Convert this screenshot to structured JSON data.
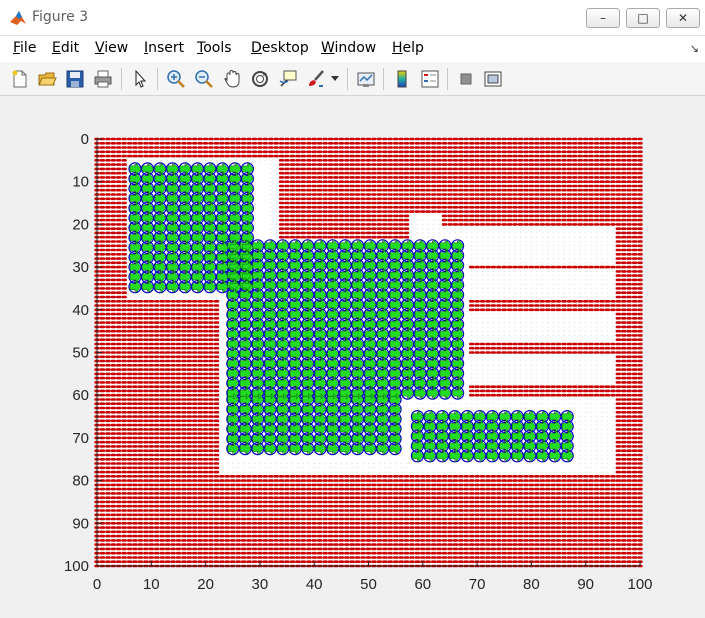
{
  "window": {
    "title": "Figure 3",
    "minimize_glyph": "–",
    "maximize_glyph": "□",
    "close_glyph": "✕",
    "icon": "matlab-logo-icon"
  },
  "menu": {
    "items": [
      {
        "label": "File",
        "accel": "F",
        "rest": "ile"
      },
      {
        "label": "Edit",
        "accel": "E",
        "rest": "dit"
      },
      {
        "label": "View",
        "accel": "V",
        "rest": "iew"
      },
      {
        "label": "Insert",
        "accel": "I",
        "rest": "nsert"
      },
      {
        "label": "Tools",
        "accel": "T",
        "rest": "ools"
      },
      {
        "label": "Desktop",
        "accel": "D",
        "rest": "esktop"
      },
      {
        "label": "Window",
        "accel": "W",
        "rest": "indow"
      },
      {
        "label": "Help",
        "accel": "H",
        "rest": "elp"
      }
    ],
    "dock_icon": "dock-arrow-icon"
  },
  "toolbar": {
    "icons": [
      "new-figure-icon",
      "open-file-icon",
      "save-icon",
      "print-icon",
      "pointer-icon",
      "zoom-in-icon",
      "zoom-out-icon",
      "pan-icon",
      "rotate-3d-icon",
      "data-cursor-icon",
      "brush-icon",
      "brush-dropdown-icon",
      "link-plot-icon",
      "colorbar-icon",
      "legend-icon",
      "hide-plot-tools-icon",
      "show-plot-tools-icon"
    ]
  },
  "chart_data": {
    "type": "scatter",
    "title": "",
    "xlabel": "",
    "ylabel": "",
    "xlim": [
      0,
      100
    ],
    "ylim": [
      0,
      100
    ],
    "y_reversed": true,
    "x_ticks": [
      "0",
      "10",
      "20",
      "30",
      "40",
      "50",
      "60",
      "70",
      "80",
      "90",
      "100"
    ],
    "y_ticks": [
      "0",
      "10",
      "20",
      "30",
      "40",
      "50",
      "60",
      "70",
      "80",
      "90",
      "100"
    ],
    "grid_step": 1,
    "obstacle_color": "#cc0000",
    "path_color": "#0000cc",
    "arrow_color": "#22dd22",
    "free_regions": [
      {
        "x": [
          6,
          33
        ],
        "y": [
          5,
          37
        ]
      },
      {
        "x": [
          23,
          33
        ],
        "y": [
          5,
          78
        ]
      },
      {
        "x": [
          23,
          68
        ],
        "y": [
          24,
          78
        ]
      },
      {
        "x": [
          58,
          63
        ],
        "y": [
          18,
          24
        ]
      },
      {
        "x": [
          58,
          95
        ],
        "y": [
          21,
          29
        ]
      },
      {
        "x": [
          68,
          95
        ],
        "y": [
          31,
          37
        ]
      },
      {
        "x": [
          68,
          95
        ],
        "y": [
          41,
          47
        ]
      },
      {
        "x": [
          68,
          95
        ],
        "y": [
          51,
          57
        ]
      },
      {
        "x": [
          68,
          95
        ],
        "y": [
          61,
          67
        ]
      },
      {
        "x": [
          68,
          95
        ],
        "y": [
          71,
          78
        ]
      },
      {
        "x": [
          33,
          95
        ],
        "y": [
          66,
          78
        ]
      }
    ],
    "visited_regions": [
      {
        "x": [
          6,
          31
        ],
        "y": [
          6,
          36
        ]
      },
      {
        "x": [
          24,
          68
        ],
        "y": [
          24,
          61
        ]
      },
      {
        "x": [
          24,
          58
        ],
        "y": [
          60,
          75
        ]
      },
      {
        "x": [
          58,
          88
        ],
        "y": [
          64,
          77
        ]
      }
    ]
  }
}
